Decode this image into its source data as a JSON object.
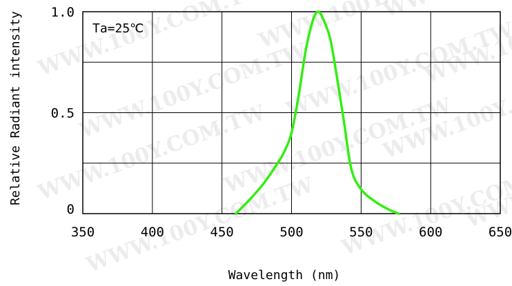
{
  "chart_data": {
    "type": "line",
    "xlabel": "Wavelength (nm)",
    "ylabel": "Relative Radiant intensity",
    "annotation": "Ta=25℃",
    "watermark": "WWW.100Y.COM.TW",
    "xlim": [
      350,
      650
    ],
    "ylim": [
      0,
      1.0
    ],
    "x_ticks": [
      {
        "value": 350,
        "label": "350"
      },
      {
        "value": 400,
        "label": "400"
      },
      {
        "value": 450,
        "label": "450"
      },
      {
        "value": 500,
        "label": "500"
      },
      {
        "value": 550,
        "label": "550"
      },
      {
        "value": 600,
        "label": "600"
      },
      {
        "value": 650,
        "label": "650"
      }
    ],
    "y_ticks": [
      {
        "value": 0,
        "label": "0"
      },
      {
        "value": 0.5,
        "label": "0.5"
      },
      {
        "value": 1.0,
        "label": "1.0"
      }
    ],
    "y_grid": [
      0,
      0.25,
      0.5,
      0.75,
      1.0
    ],
    "grid": true,
    "color": "#33ee11",
    "series": [
      {
        "x": [
          460,
          470,
          480,
          490,
          495,
          500,
          505,
          510,
          515,
          519,
          523,
          528,
          533,
          538,
          543,
          550,
          560,
          570,
          577
        ],
        "y": [
          0.0,
          0.07,
          0.15,
          0.25,
          0.31,
          0.4,
          0.58,
          0.8,
          0.95,
          1.0,
          0.96,
          0.86,
          0.66,
          0.44,
          0.22,
          0.12,
          0.06,
          0.02,
          0.0
        ]
      }
    ]
  }
}
